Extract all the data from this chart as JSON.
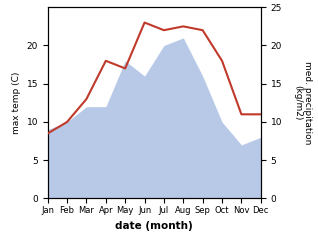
{
  "months": [
    "Jan",
    "Feb",
    "Mar",
    "Apr",
    "May",
    "Jun",
    "Jul",
    "Aug",
    "Sep",
    "Oct",
    "Nov",
    "Dec"
  ],
  "temperature": [
    8.5,
    10.0,
    13.0,
    18.0,
    17.0,
    23.0,
    22.0,
    22.5,
    22.0,
    18.0,
    11.0,
    11.0
  ],
  "precipitation": [
    9.0,
    10.0,
    12.0,
    12.0,
    18.0,
    16.0,
    20.0,
    21.0,
    16.0,
    10.0,
    7.0,
    8.0
  ],
  "temp_color": "#c0392b",
  "precip_fill_color": "#b8c9e8",
  "ylim": [
    0,
    25
  ],
  "xlabel": "date (month)",
  "ylabel_left": "max temp (C)",
  "ylabel_right": "med. precipitation\n(kg/m2)",
  "yticks_left": [
    0,
    5,
    10,
    15,
    20
  ],
  "yticks_right": [
    0,
    5,
    10,
    15,
    20,
    25
  ]
}
